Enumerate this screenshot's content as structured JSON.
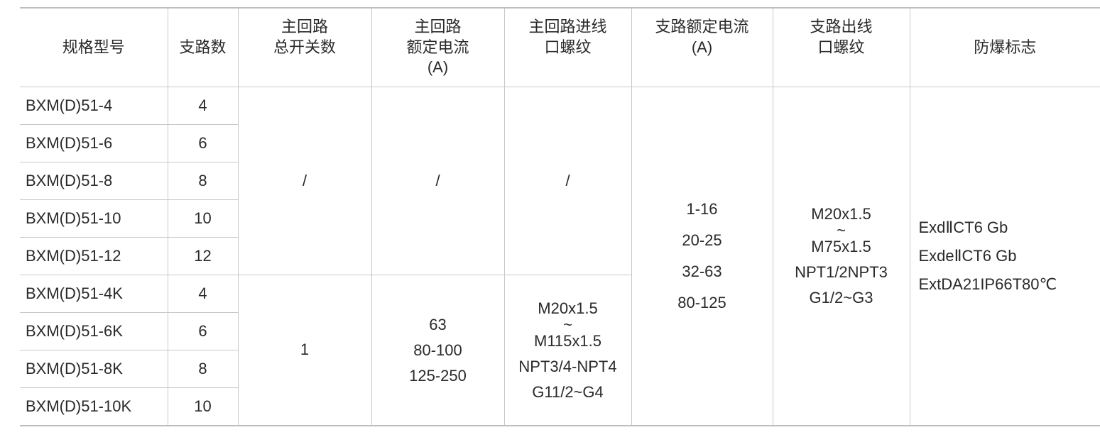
{
  "headers": [
    [
      "规格型号"
    ],
    [
      "支路数"
    ],
    [
      "主回路",
      "总开关数"
    ],
    [
      "主回路",
      "额定电流",
      "(A)"
    ],
    [
      "主回路进线",
      "口螺纹"
    ],
    [
      "支路额定电流",
      "(A)"
    ],
    [
      "支路出线",
      "口螺纹"
    ],
    [
      "防爆标志"
    ]
  ],
  "rows": [
    {
      "model": "BXM(D)51-4",
      "branches": "4"
    },
    {
      "model": "BXM(D)51-6",
      "branches": "6"
    },
    {
      "model": "BXM(D)51-8",
      "branches": "8"
    },
    {
      "model": "BXM(D)51-10",
      "branches": "10"
    },
    {
      "model": "BXM(D)51-12",
      "branches": "12"
    },
    {
      "model": "BXM(D)51-4K",
      "branches": "4"
    },
    {
      "model": "BXM(D)51-6K",
      "branches": "6"
    },
    {
      "model": "BXM(D)51-8K",
      "branches": "8"
    },
    {
      "model": "BXM(D)51-10K",
      "branches": "10"
    }
  ],
  "group_plain": {
    "main_switches": "/",
    "main_current": "/",
    "main_thread": "/"
  },
  "group_k": {
    "main_switches": "1",
    "main_current": [
      "63",
      "80-100",
      "125-250"
    ],
    "main_thread": [
      "M20x1.5",
      "~",
      "M115x1.5",
      "NPT3/4-NPT4",
      "G11/2~G4"
    ]
  },
  "branch_current": [
    "1-16",
    "20-25",
    "32-63",
    "80-125"
  ],
  "branch_thread": [
    "M20x1.5",
    "~",
    "M75x1.5",
    "NPT1/2NPT3",
    "G1/2~G3"
  ],
  "ex_marks": [
    "ExdⅡCT6 Gb",
    "ExdeⅡCT6 Gb",
    "ExtDA21IP66T80℃"
  ]
}
